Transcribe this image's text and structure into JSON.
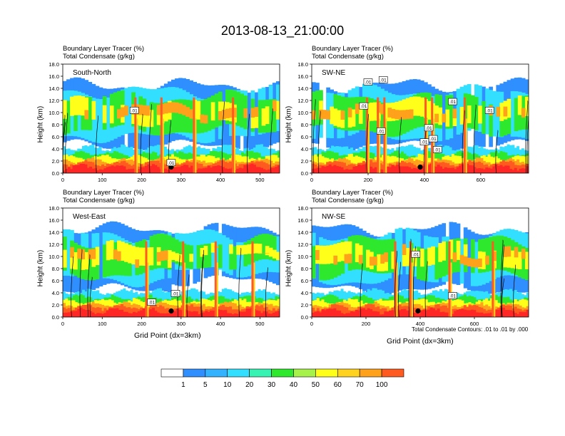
{
  "title": "2013-08-13_21:00:00",
  "colors": {
    "levels": [
      "#ffffff",
      "#2f8fff",
      "#33b2ff",
      "#33dfff",
      "#36f2b3",
      "#2ee82e",
      "#a6f24a",
      "#ffff1a",
      "#ffd21f",
      "#ffa11a",
      "#ff5a1f",
      "#ff2626"
    ]
  },
  "colorbar": {
    "labels": [
      "1",
      "5",
      "10",
      "20",
      "30",
      "40",
      "50",
      "60",
      "70",
      "100"
    ]
  },
  "contour_note": "Total Condensate Contours: .01 to .01 by .000",
  "chart_data": [
    {
      "type": "heatmap",
      "panel_label": "South-North",
      "field1": "Boundary Layer Tracer    (%)",
      "field2": "Total Condensate    (g/kg)",
      "ylabel": "Height (km)",
      "xlabel": "",
      "xlim": [
        0,
        550
      ],
      "ylim": [
        0,
        18
      ],
      "xticks": [
        "0",
        "100",
        "200",
        "300",
        "400",
        "500"
      ],
      "yticks": [
        "0.0",
        "2.0",
        "4.0",
        "6.0",
        "8.0",
        "10.0",
        "12.0",
        "14.0",
        "16.0",
        "18.0"
      ],
      "contour_labels": [
        ".01",
        ".01"
      ]
    },
    {
      "type": "heatmap",
      "panel_label": "SW-NE",
      "field1": "Boundary Layer Tracer    (%)",
      "field2": "Total Condensate    (g/kg)",
      "ylabel": "Height (km)",
      "xlabel": "",
      "xlim": [
        0,
        770
      ],
      "ylim": [
        0,
        18
      ],
      "xticks": [
        "0",
        "200",
        "400",
        "600"
      ],
      "yticks": [
        "0.0",
        "2.0",
        "4.0",
        "6.0",
        "8.0",
        "10.0",
        "12.0",
        "14.0",
        "16.0",
        "18.0"
      ],
      "contour_labels": [
        ".01",
        ".01",
        ".01",
        ".01",
        ".01",
        ".01",
        ".01",
        ".01",
        ".01",
        ".01"
      ]
    },
    {
      "type": "heatmap",
      "panel_label": "West-East",
      "field1": "Boundary Layer Tracer    (%)",
      "field2": "Total Condensate    (g/kg)",
      "ylabel": "Height (km)",
      "xlabel": "Grid Point (dx=3km)",
      "xlim": [
        0,
        550
      ],
      "ylim": [
        0,
        18
      ],
      "xticks": [
        "0",
        "100",
        "200",
        "300",
        "400",
        "500"
      ],
      "yticks": [
        "0.0",
        "2.0",
        "4.0",
        "6.0",
        "8.0",
        "10.0",
        "12.0",
        "14.0",
        "16.0",
        "18.0"
      ],
      "contour_labels": [
        ".01",
        ".01"
      ]
    },
    {
      "type": "heatmap",
      "panel_label": "NW-SE",
      "field1": "Boundary Layer Tracer    (%)",
      "field2": "Total Condensate    (g/kg)",
      "ylabel": "Height (km)",
      "xlabel": "Grid Point (dx=3km)",
      "xlim": [
        0,
        800
      ],
      "ylim": [
        0,
        18
      ],
      "xticks": [
        "0",
        "200",
        "400",
        "600"
      ],
      "yticks": [
        "0.0",
        "2.0",
        "4.0",
        "6.0",
        "8.0",
        "10.0",
        "12.0",
        "14.0",
        "16.0",
        "18.0"
      ],
      "contour_labels": [
        ".01",
        ".01"
      ]
    }
  ]
}
